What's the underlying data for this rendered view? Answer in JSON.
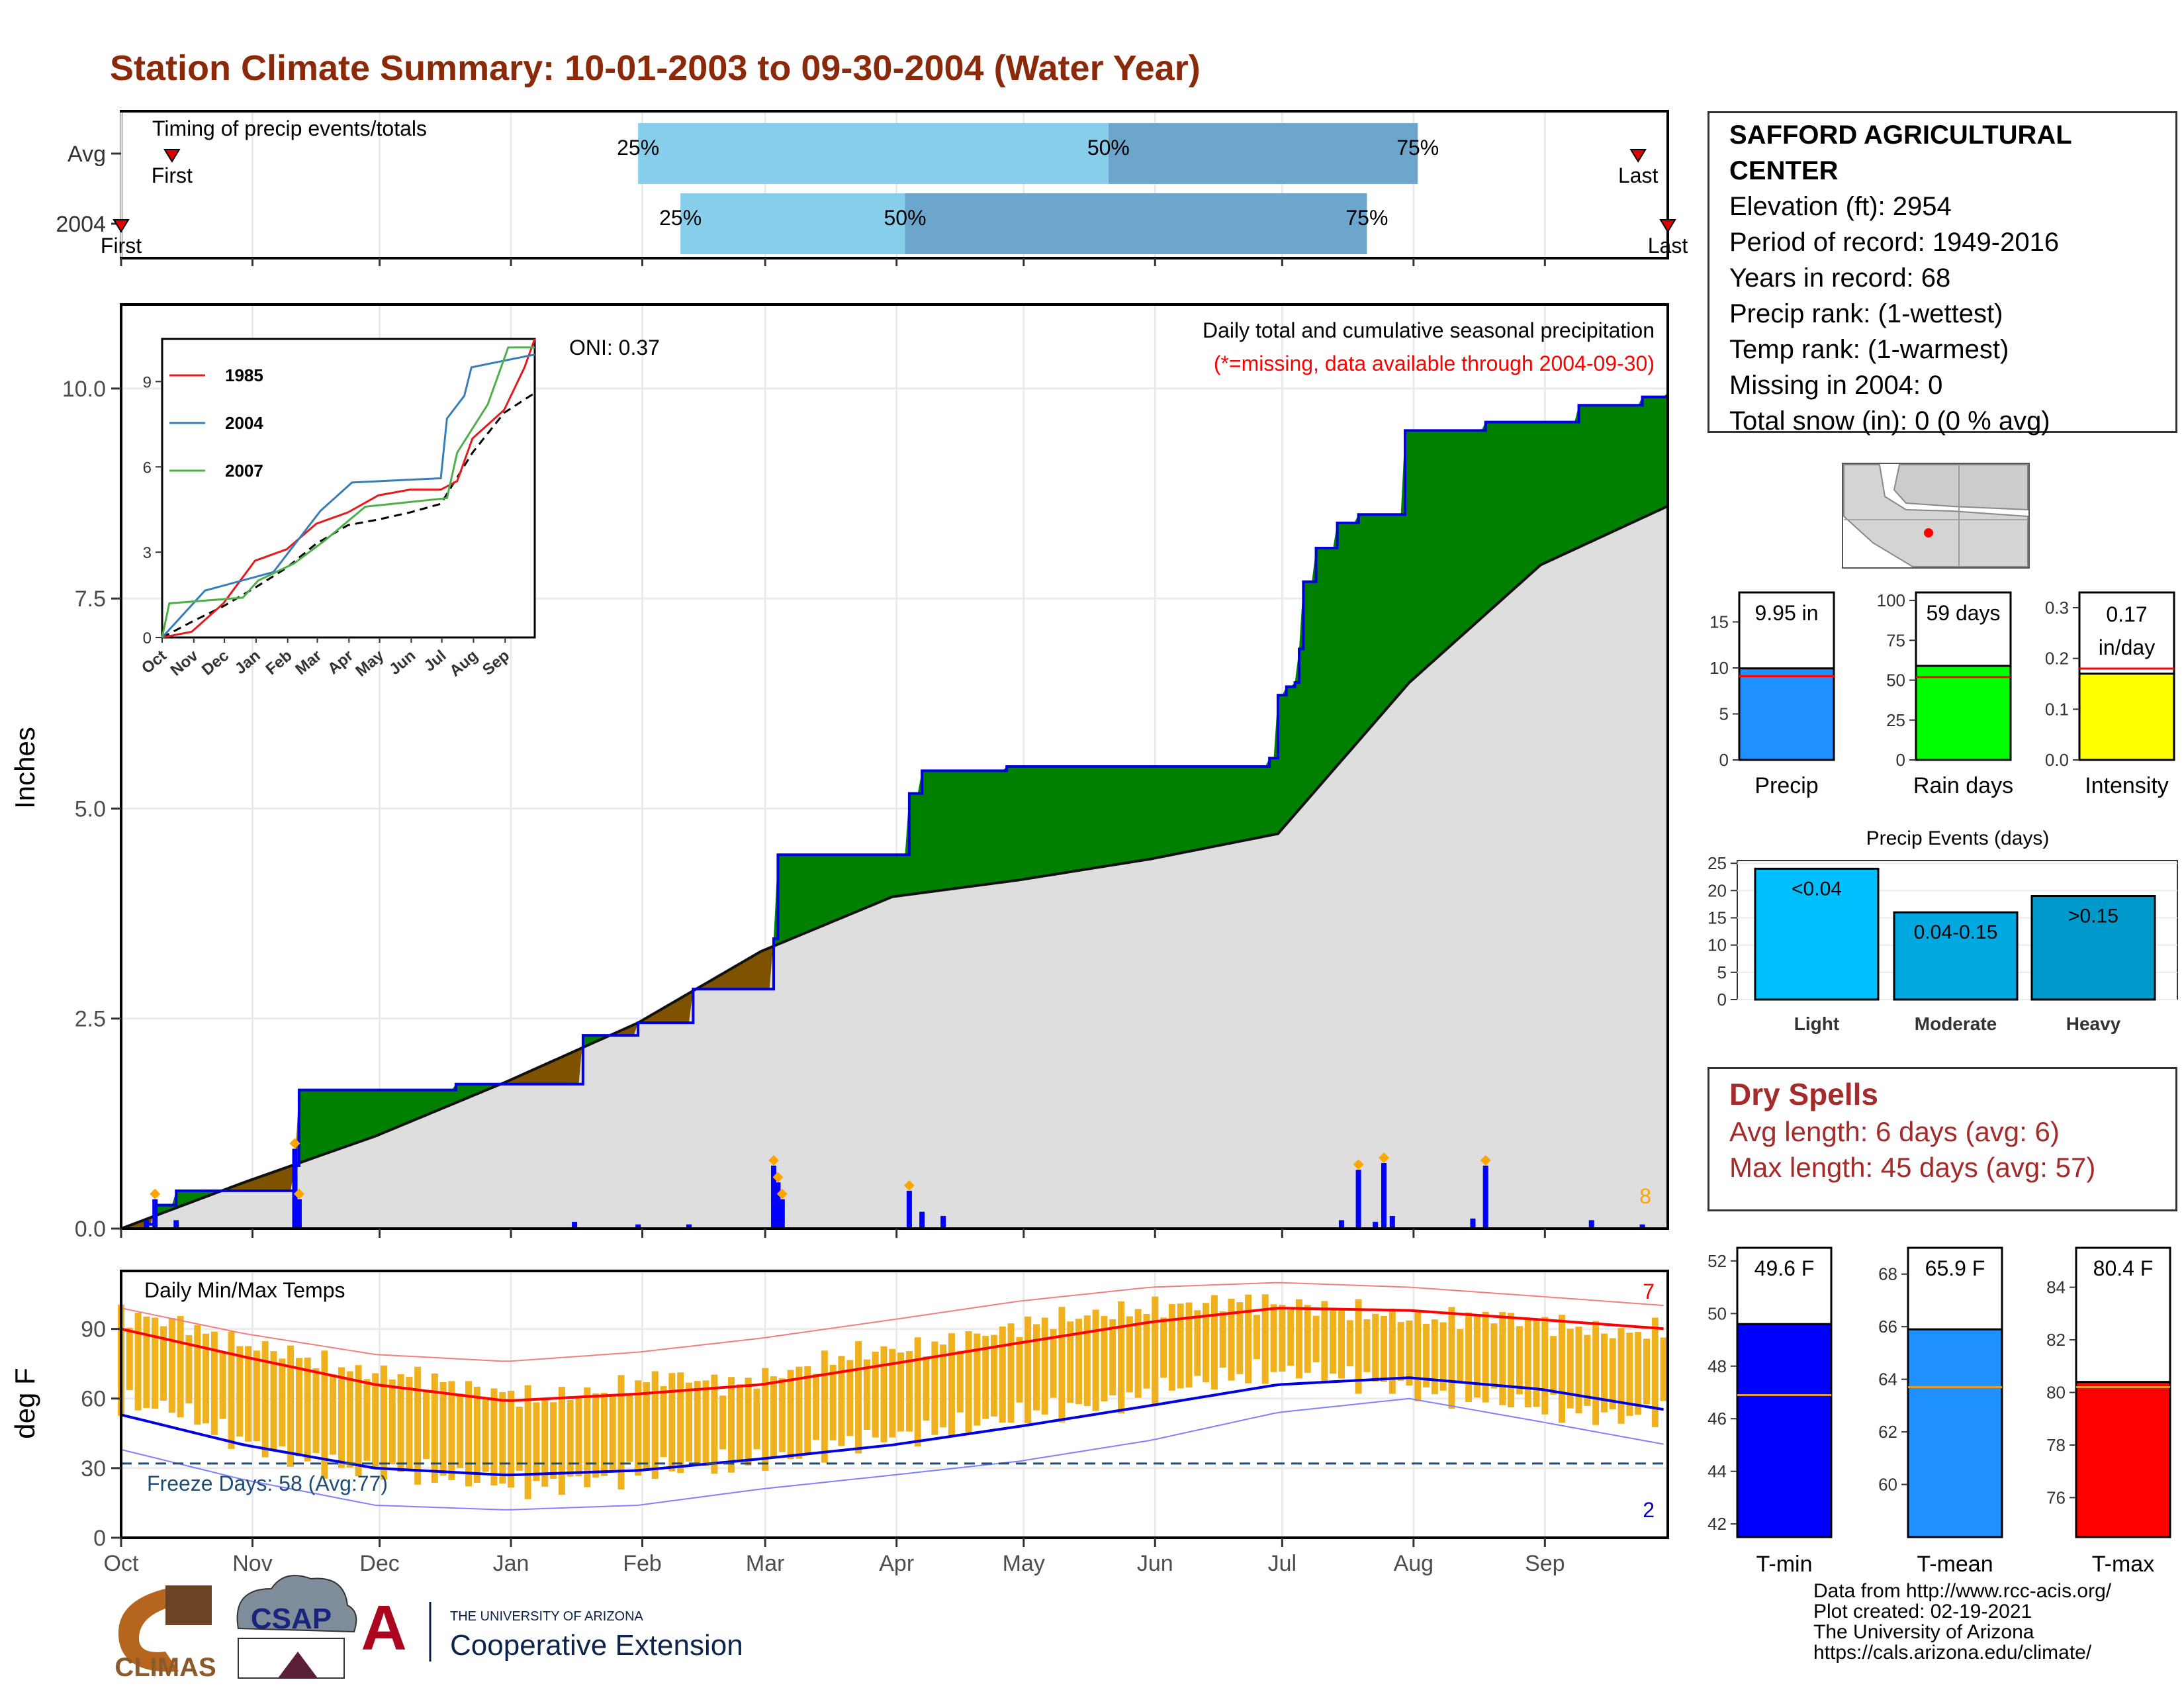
{
  "page": {
    "title": "Station Climate Summary: 10-01-2003 to 09-30-2004 (Water Year)"
  },
  "timing_chart": {
    "label": "Timing of precip events/totals",
    "rows": [
      {
        "name": "Avg",
        "first_day": 13,
        "p25": 123,
        "p50": 234,
        "p75": 307,
        "last_day": 359,
        "first_label": "First",
        "last_label": "Last"
      },
      {
        "name": "2004",
        "first_day": 1,
        "p25": 133,
        "p50": 186,
        "p75": 295,
        "last_day": 366,
        "first_label": "First",
        "last_label": "Last"
      }
    ],
    "pct_labels": [
      "25%",
      "50%",
      "75%"
    ],
    "colors": {
      "light": "#87ceeb",
      "dark": "#6ca6cd"
    }
  },
  "main_chart": {
    "ylabel": "Inches",
    "annotation": "Daily total and cumulative seasonal precipitation",
    "missing_note": "(*=missing, data available through 2004-09-30)",
    "oni": "ONI: 0.37",
    "corner_value": "8",
    "yticks": [
      "0.0",
      "2.5",
      "5.0",
      "7.5",
      "10.0"
    ],
    "ylim": [
      0,
      11
    ]
  },
  "inset_chart": {
    "yticks": [
      "0",
      "3",
      "6",
      "9"
    ],
    "months": [
      "Oct",
      "Nov",
      "Dec",
      "Jan",
      "Feb",
      "Mar",
      "Apr",
      "May",
      "Jun",
      "Jul",
      "Aug",
      "Sep"
    ],
    "legend": [
      {
        "name": "1985",
        "color": "#e41a1c"
      },
      {
        "name": "2004",
        "color": "#377eb8"
      },
      {
        "name": "2007",
        "color": "#4daf4a"
      }
    ]
  },
  "temp_chart": {
    "ylabel": "deg F",
    "label": "Daily Min/Max Temps",
    "freeze_label": "Freeze Days: 58 (Avg:77)",
    "corner_high": "7",
    "corner_low": "2",
    "yticks": [
      "0",
      "30",
      "60",
      "90"
    ],
    "ylim": [
      0,
      115
    ]
  },
  "x_months": [
    "Oct",
    "Nov",
    "Dec",
    "Jan",
    "Feb",
    "Mar",
    "Apr",
    "May",
    "Jun",
    "Jul",
    "Aug",
    "Sep"
  ],
  "station": {
    "name_line1": "SAFFORD AGRICULTURAL",
    "name_line2": "CENTER",
    "elevation": "Elevation (ft): 2954",
    "period": "Period of record: 1949-2016",
    "years": "Years in record: 68",
    "precip_rank": "Precip rank:  (1-wettest)",
    "temp_rank": "Temp rank:  (1-warmest)",
    "missing": "Missing in 2004: 0",
    "snow": "Total snow (in): 0 (0 % avg)"
  },
  "summary_bars": [
    {
      "label": "Precip",
      "value_label": "9.95 in",
      "value": 9.95,
      "avg": 9.1,
      "max": 18.2,
      "ticks": [
        "0",
        "5",
        "10",
        "15"
      ],
      "tick_vals": [
        0,
        5,
        10,
        15
      ],
      "color": "#1e90ff"
    },
    {
      "label": "Rain days",
      "value_label": "59 days",
      "value": 59,
      "avg": 52,
      "max": 105,
      "ticks": [
        "0",
        "25",
        "50",
        "75",
        "100"
      ],
      "tick_vals": [
        0,
        25,
        50,
        75,
        100
      ],
      "color": "#00ff00"
    },
    {
      "label": "Intensity",
      "value_label": "0.17 in/day",
      "value": 0.17,
      "avg": 0.18,
      "max": 0.33,
      "ticks": [
        "0.0",
        "0.1",
        "0.2",
        "0.3"
      ],
      "tick_vals": [
        0,
        0.1,
        0.2,
        0.3
      ],
      "color": "#ffff00"
    }
  ],
  "precip_events": {
    "title": "Precip Events (days)",
    "ticks": [
      "0",
      "5",
      "10",
      "15",
      "20",
      "25"
    ],
    "categories": [
      "Light",
      "Moderate",
      "Heavy"
    ],
    "bars": [
      {
        "label": "<0.04",
        "value": 24,
        "color": "#00bfff"
      },
      {
        "label": "0.04-0.15",
        "value": 16,
        "color": "#00a8e0"
      },
      {
        "label": ">0.15",
        "value": 19,
        "color": "#0099cc"
      }
    ]
  },
  "dry_spells": {
    "title": "Dry Spells",
    "avg": "Avg length: 6 days (avg: 6)",
    "max": "Max length: 45 days (avg: 57)"
  },
  "temp_bars": [
    {
      "label": "T-min",
      "value_label": "49.6 F",
      "value": 49.6,
      "avg": 46.9,
      "ymin": 41.5,
      "ymax": 52.5,
      "ticks": [
        "42",
        "44",
        "46",
        "48",
        "50",
        "52"
      ],
      "tick_vals": [
        42,
        44,
        46,
        48,
        50,
        52
      ],
      "color": "#0000ff"
    },
    {
      "label": "T-mean",
      "value_label": "65.9 F",
      "value": 65.9,
      "avg": 63.7,
      "ymin": 58,
      "ymax": 69,
      "ticks": [
        "60",
        "62",
        "64",
        "66",
        "68"
      ],
      "tick_vals": [
        60,
        62,
        64,
        66,
        68
      ],
      "color": "#1e90ff"
    },
    {
      "label": "T-max",
      "value_label": "80.4 F",
      "value": 80.4,
      "avg": 80.2,
      "ymin": 74.5,
      "ymax": 85.5,
      "ticks": [
        "76",
        "78",
        "80",
        "82",
        "84"
      ],
      "tick_vals": [
        76,
        78,
        80,
        82,
        84
      ],
      "color": "#ff0000"
    }
  ],
  "credits": {
    "line1": "Data from http://www.rcc-acis.org/",
    "line2": "Plot created: 02-19-2021",
    "line3": "The University of Arizona",
    "line4": "https://cals.arizona.edu/climate/"
  },
  "logos": {
    "climas": "CLIMAS",
    "csap": "CSAP",
    "ua_small": "THE UNIVERSITY OF ARIZONA",
    "ua_big": "Cooperative Extension"
  },
  "chart_data": {
    "type": "area",
    "title": "Daily total and cumulative seasonal precipitation",
    "ylabel": "Inches",
    "ylim": [
      0,
      11
    ],
    "x_axis": "water year day (Oct 1 2003 - Sep 30 2004)",
    "cumulative_2004": {
      "x": [
        1,
        7,
        9,
        14,
        35,
        39,
        42,
        43,
        80,
        80,
        85,
        108,
        110,
        122,
        123,
        134,
        136,
        140,
        153,
        155,
        156,
        184,
        187,
        190,
        195,
        210,
        260,
        270,
        272,
        274,
        276,
        278,
        279,
        280,
        283,
        288,
        293,
        297,
        301,
        304,
        320,
        323,
        340,
        345,
        360,
        366
      ],
      "y": [
        0.0,
        0.05,
        0.28,
        0.45,
        0.45,
        0.45,
        0.75,
        1.65,
        1.65,
        1.72,
        1.72,
        1.72,
        2.3,
        2.3,
        2.45,
        2.45,
        2.85,
        2.85,
        2.85,
        3.45,
        4.45,
        4.45,
        5.18,
        5.45,
        5.45,
        5.5,
        5.5,
        5.5,
        5.6,
        6.35,
        6.45,
        6.5,
        6.9,
        7.7,
        8.1,
        8.4,
        8.5,
        8.5,
        8.5,
        9.5,
        9.5,
        9.6,
        9.6,
        9.8,
        9.9,
        9.95
      ]
    },
    "average_cumulative": {
      "x": [
        1,
        30,
        61,
        92,
        123,
        152,
        183,
        213,
        244,
        274,
        305,
        336,
        366
      ],
      "y": [
        0.0,
        0.55,
        1.1,
        1.75,
        2.45,
        3.3,
        3.95,
        4.15,
        4.4,
        4.7,
        6.5,
        7.9,
        8.6
      ]
    },
    "daily_precip": {
      "x": [
        7,
        9,
        14,
        42,
        43,
        108,
        123,
        135,
        155,
        156,
        157,
        187,
        190,
        195,
        289,
        293,
        297,
        299,
        301,
        320,
        323,
        348,
        360
      ],
      "y": [
        0.1,
        0.35,
        0.1,
        0.95,
        0.35,
        0.08,
        0.05,
        0.05,
        0.75,
        0.55,
        0.35,
        0.45,
        0.2,
        0.15,
        0.1,
        0.7,
        0.08,
        0.78,
        0.15,
        0.12,
        0.75,
        0.1,
        0.05
      ]
    },
    "inset_cumulative": {
      "series": [
        {
          "name": "1985",
          "x": [
            1,
            30,
            61,
            92,
            123,
            152,
            183,
            213,
            244,
            274,
            290,
            305,
            336,
            356,
            366
          ],
          "y": [
            0,
            0.2,
            1.2,
            2.7,
            3.1,
            4.0,
            4.4,
            5.0,
            5.2,
            5.2,
            5.5,
            7.0,
            8.0,
            9.5,
            10.5
          ]
        },
        {
          "name": "2004",
          "x": [
            1,
            43,
            110,
            156,
            187,
            274,
            280,
            297,
            304,
            345,
            366
          ],
          "y": [
            0.0,
            1.65,
            2.3,
            4.45,
            5.45,
            5.6,
            7.7,
            8.5,
            9.5,
            9.8,
            9.95
          ]
        },
        {
          "name": "2007",
          "x": [
            1,
            8,
            80,
            95,
            130,
            160,
            200,
            280,
            290,
            320,
            340,
            366
          ],
          "y": [
            0,
            1.2,
            1.4,
            2.0,
            2.6,
            3.4,
            4.6,
            4.9,
            6.5,
            8.2,
            10.2,
            10.2
          ]
        }
      ],
      "average": {
        "x": [
          1,
          30,
          61,
          92,
          123,
          152,
          183,
          213,
          244,
          274,
          305,
          336,
          366
        ],
        "y": [
          0.0,
          0.55,
          1.1,
          1.75,
          2.45,
          3.3,
          3.95,
          4.15,
          4.4,
          4.7,
          6.5,
          7.9,
          8.6
        ]
      }
    },
    "temperature": {
      "ylim": [
        0,
        115
      ],
      "avg_max": {
        "x": [
          1,
          30,
          61,
          92,
          123,
          152,
          183,
          213,
          244,
          274,
          305,
          336,
          366
        ],
        "y": [
          90,
          78,
          66,
          59,
          62,
          66,
          75,
          84,
          93,
          99,
          98,
          94,
          90
        ]
      },
      "avg_min": {
        "x": [
          1,
          30,
          61,
          92,
          123,
          152,
          183,
          213,
          244,
          274,
          305,
          336,
          366
        ],
        "y": [
          53,
          40,
          30,
          27,
          29,
          34,
          40,
          48,
          57,
          66,
          69,
          64,
          55
        ]
      },
      "record_max": {
        "x": [
          1,
          30,
          61,
          92,
          123,
          152,
          183,
          213,
          244,
          274,
          305,
          336,
          366
        ],
        "y": [
          99,
          88,
          79,
          76,
          80,
          86,
          94,
          102,
          108,
          110,
          108,
          104,
          100
        ]
      },
      "record_min": {
        "x": [
          1,
          30,
          61,
          92,
          123,
          152,
          183,
          213,
          244,
          274,
          305,
          336,
          366
        ],
        "y": [
          38,
          25,
          14,
          12,
          14,
          21,
          27,
          33,
          42,
          54,
          60,
          50,
          40
        ]
      },
      "daily_max": {
        "x": [
          1,
          15,
          25,
          40,
          55,
          70,
          85,
          100,
          115,
          130,
          145,
          160,
          175,
          190,
          205,
          220,
          235,
          250,
          265,
          280,
          295,
          310,
          325,
          340,
          355,
          366
        ],
        "y": [
          96,
          93,
          85,
          80,
          72,
          70,
          64,
          60,
          63,
          70,
          66,
          72,
          80,
          82,
          88,
          94,
          97,
          100,
          102,
          100,
          97,
          94,
          96,
          92,
          88,
          90
        ]
      },
      "daily_min": {
        "x": [
          1,
          15,
          25,
          40,
          55,
          70,
          85,
          100,
          115,
          130,
          145,
          160,
          175,
          190,
          205,
          220,
          235,
          250,
          265,
          280,
          295,
          310,
          325,
          340,
          355,
          366
        ],
        "y": [
          58,
          55,
          45,
          35,
          30,
          28,
          25,
          22,
          26,
          30,
          32,
          35,
          42,
          45,
          50,
          55,
          58,
          65,
          70,
          72,
          68,
          62,
          60,
          55,
          52,
          55
        ]
      },
      "freeze_line": 32
    }
  }
}
